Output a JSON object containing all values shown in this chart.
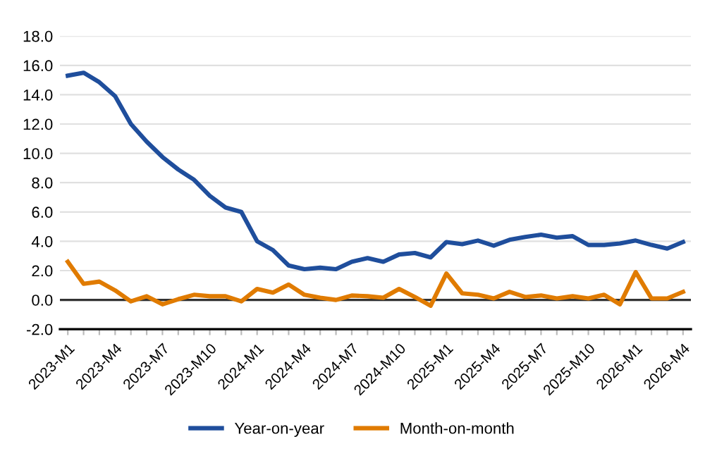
{
  "chart_data": {
    "type": "line",
    "categories": [
      "2023-M1",
      null,
      null,
      "2023-M4",
      null,
      null,
      "2023-M7",
      null,
      null,
      "2023-M10",
      null,
      null,
      "2024-M1",
      null,
      null,
      "2024-M4",
      null,
      null,
      "2024-M7",
      null,
      null,
      "2024-M10",
      null,
      null,
      "2025-M1",
      null,
      null,
      "2025-M4",
      null,
      null,
      "2025-M7",
      null,
      null,
      "2025-M10",
      null,
      null,
      "2026-M1",
      null,
      null,
      "2026-M4"
    ],
    "series": [
      {
        "name": "Year-on-year",
        "color": "#1f4e9c",
        "values": [
          15.3,
          15.5,
          14.85,
          13.9,
          12.0,
          10.8,
          9.75,
          8.9,
          8.2,
          7.1,
          6.3,
          6.0,
          4.0,
          3.4,
          2.35,
          2.1,
          2.2,
          2.1,
          2.6,
          2.85,
          2.6,
          3.1,
          3.2,
          2.9,
          3.95,
          3.8,
          4.05,
          3.7,
          4.1,
          4.3,
          4.45,
          4.25,
          4.35,
          3.75,
          3.75,
          3.85,
          4.05,
          3.75,
          3.5,
          3.95
        ]
      },
      {
        "name": "Month-on-month",
        "color": "#e07b00",
        "values": [
          2.6,
          1.1,
          1.25,
          0.65,
          -0.1,
          0.25,
          -0.3,
          0.05,
          0.35,
          0.25,
          0.25,
          -0.1,
          0.75,
          0.5,
          1.05,
          0.35,
          0.15,
          0.0,
          0.3,
          0.25,
          0.15,
          0.75,
          0.2,
          -0.4,
          1.8,
          0.45,
          0.35,
          0.1,
          0.55,
          0.2,
          0.3,
          0.1,
          0.25,
          0.1,
          0.35,
          -0.3,
          1.9,
          0.1,
          0.1,
          0.55
        ]
      }
    ],
    "ylim": [
      -2,
      18
    ],
    "yticks": [
      {
        "value": -2,
        "label": "-2.0"
      },
      {
        "value": 0,
        "label": "0.0"
      },
      {
        "value": 2,
        "label": "2.0"
      },
      {
        "value": 4,
        "label": "4.0"
      },
      {
        "value": 6,
        "label": "6.0"
      },
      {
        "value": 8,
        "label": "8.0"
      },
      {
        "value": 10,
        "label": "10.0"
      },
      {
        "value": 12,
        "label": "12.0"
      },
      {
        "value": 14,
        "label": "14.0"
      },
      {
        "value": 16,
        "label": "16.0"
      },
      {
        "value": 18,
        "label": "18.0"
      }
    ],
    "ref_lines": [
      {
        "axis": "y",
        "value": 0,
        "color": "#333333"
      }
    ],
    "grid": "y",
    "legend": "bottom",
    "marker": "none",
    "line_style": "solid"
  }
}
